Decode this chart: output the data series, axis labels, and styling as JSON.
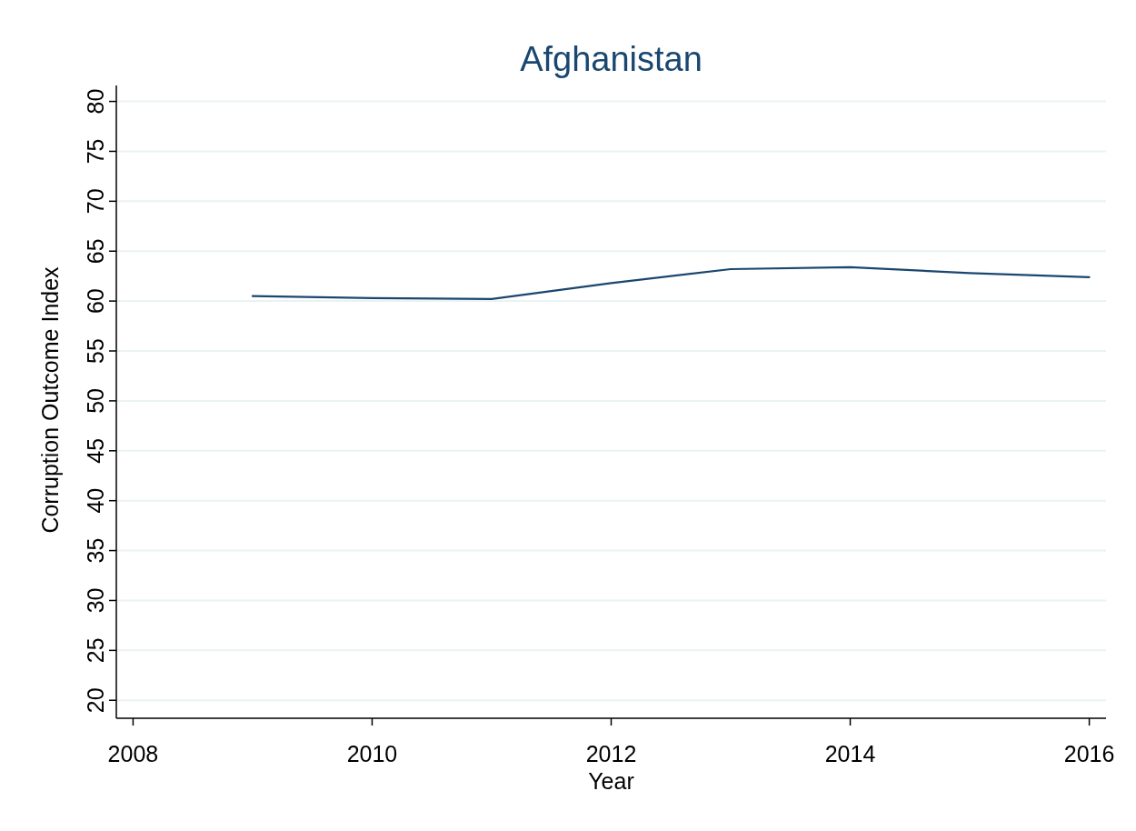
{
  "chart_data": {
    "type": "line",
    "title": "Afghanistan",
    "xlabel": "Year",
    "ylabel": "Corruption Outcome Index",
    "x": [
      2009,
      2010,
      2011,
      2012,
      2013,
      2014,
      2015,
      2016
    ],
    "series": [
      {
        "color": "#1a476f",
        "values": [
          60.5,
          60.3,
          60.2,
          61.8,
          63.2,
          63.4,
          62.8,
          62.4
        ]
      }
    ],
    "xlim": [
      2007.86,
      2016.14
    ],
    "xticks": [
      2008,
      2010,
      2012,
      2014,
      2016
    ],
    "ylim": [
      18.2,
      81.6
    ],
    "yticks": [
      20,
      25,
      30,
      35,
      40,
      45,
      50,
      55,
      60,
      65,
      70,
      75,
      80
    ],
    "grid": "y",
    "marker": "none",
    "line_style": "solid"
  }
}
